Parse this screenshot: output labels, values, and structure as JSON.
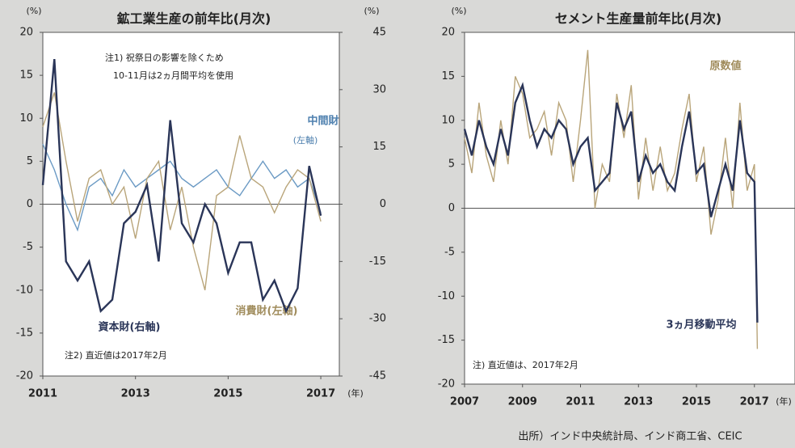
{
  "chart_data": [
    {
      "type": "line",
      "title": "鉱工業生産の前年比(月次)",
      "y_unit": "(%)",
      "y2_unit": "(%)",
      "x_unit": "(年)",
      "xlim": [
        2011,
        2017.4
      ],
      "xticks": [
        2011,
        2013,
        2015,
        2017
      ],
      "ylim": [
        -20,
        20
      ],
      "yticks": [
        -20,
        -15,
        -10,
        -5,
        0,
        5,
        10,
        15,
        20
      ],
      "y2lim": [
        -45,
        45
      ],
      "y2ticks": [
        -45,
        -30,
        -15,
        0,
        15,
        30,
        45
      ],
      "annotations": [
        "注1) 祝祭日の影響を除くため",
        "10-11月は2ヵ月間平均を使用",
        "注2) 直近値は2017年2月"
      ],
      "x": [
        2011,
        2011.25,
        2011.5,
        2011.75,
        2012,
        2012.25,
        2012.5,
        2012.75,
        2013,
        2013.25,
        2013.5,
        2013.75,
        2014,
        2014.25,
        2014.5,
        2014.75,
        2015,
        2015.25,
        2015.5,
        2015.75,
        2016,
        2016.25,
        2016.5,
        2016.75,
        2017
      ],
      "series": [
        {
          "name": "中間財",
          "axis_label": "(左軸)",
          "color": "#6b9ac4",
          "values": [
            7,
            4,
            0,
            -3,
            2,
            3,
            1,
            4,
            2,
            3,
            4,
            5,
            3,
            2,
            3,
            4,
            2,
            1,
            3,
            5,
            3,
            4,
            2,
            3,
            -1
          ]
        },
        {
          "name": "消費財(左軸)",
          "color": "#b9a57a",
          "values": [
            9,
            13,
            5,
            -2,
            3,
            4,
            0,
            2,
            -4,
            3,
            5,
            -3,
            2,
            -5,
            -10,
            1,
            2,
            8,
            3,
            2,
            -1,
            2,
            4,
            3,
            -2
          ]
        },
        {
          "name": "資本財(右軸)",
          "color": "#2a3558",
          "axis": "y2",
          "values": [
            5,
            38,
            -15,
            -20,
            -15,
            -28,
            -25,
            -5,
            -2,
            5,
            -15,
            22,
            -5,
            -10,
            0,
            -5,
            -18,
            -10,
            -10,
            -25,
            -20,
            -28,
            -22,
            10,
            -3
          ]
        }
      ]
    },
    {
      "type": "line",
      "title": "セメント生産量前年比(月次)",
      "y_unit": "(%)",
      "x_unit": "(年)",
      "xlim": [
        2007,
        2018.4
      ],
      "xticks": [
        2007,
        2009,
        2011,
        2013,
        2015,
        2017
      ],
      "ylim": [
        -20,
        20
      ],
      "yticks": [
        -20,
        -15,
        -10,
        -5,
        0,
        5,
        10,
        15,
        20
      ],
      "annotations": [
        "注) 直近値は、2017年2月"
      ],
      "source": "出所）インド中央統計局、インド商工省、CEIC",
      "x": [
        2007,
        2007.25,
        2007.5,
        2007.75,
        2008,
        2008.25,
        2008.5,
        2008.75,
        2009,
        2009.25,
        2009.5,
        2009.75,
        2010,
        2010.25,
        2010.5,
        2010.75,
        2011,
        2011.25,
        2011.5,
        2011.75,
        2012,
        2012.25,
        2012.5,
        2012.75,
        2013,
        2013.25,
        2013.5,
        2013.75,
        2014,
        2014.25,
        2014.5,
        2014.75,
        2015,
        2015.25,
        2015.5,
        2015.75,
        2016,
        2016.25,
        2016.5,
        2016.75,
        2017,
        2017.1
      ],
      "series": [
        {
          "name": "原数値",
          "color": "#b9a57a",
          "values": [
            8,
            4,
            12,
            6,
            3,
            10,
            5,
            15,
            13,
            8,
            9,
            11,
            6,
            12,
            10,
            3,
            10,
            18,
            0,
            5,
            3,
            13,
            8,
            14,
            1,
            8,
            2,
            7,
            2,
            4,
            9,
            13,
            3,
            7,
            -3,
            1,
            8,
            0,
            12,
            2,
            5,
            -16
          ]
        },
        {
          "name": "3ヵ月移動平均",
          "color": "#2a3558",
          "values": [
            9,
            6,
            10,
            7,
            5,
            9,
            6,
            12,
            14,
            10,
            7,
            9,
            8,
            10,
            9,
            5,
            7,
            8,
            2,
            3,
            4,
            12,
            9,
            11,
            3,
            6,
            4,
            5,
            3,
            2,
            7,
            11,
            4,
            5,
            -1,
            2,
            5,
            2,
            10,
            4,
            3,
            -13
          ]
        }
      ]
    }
  ]
}
